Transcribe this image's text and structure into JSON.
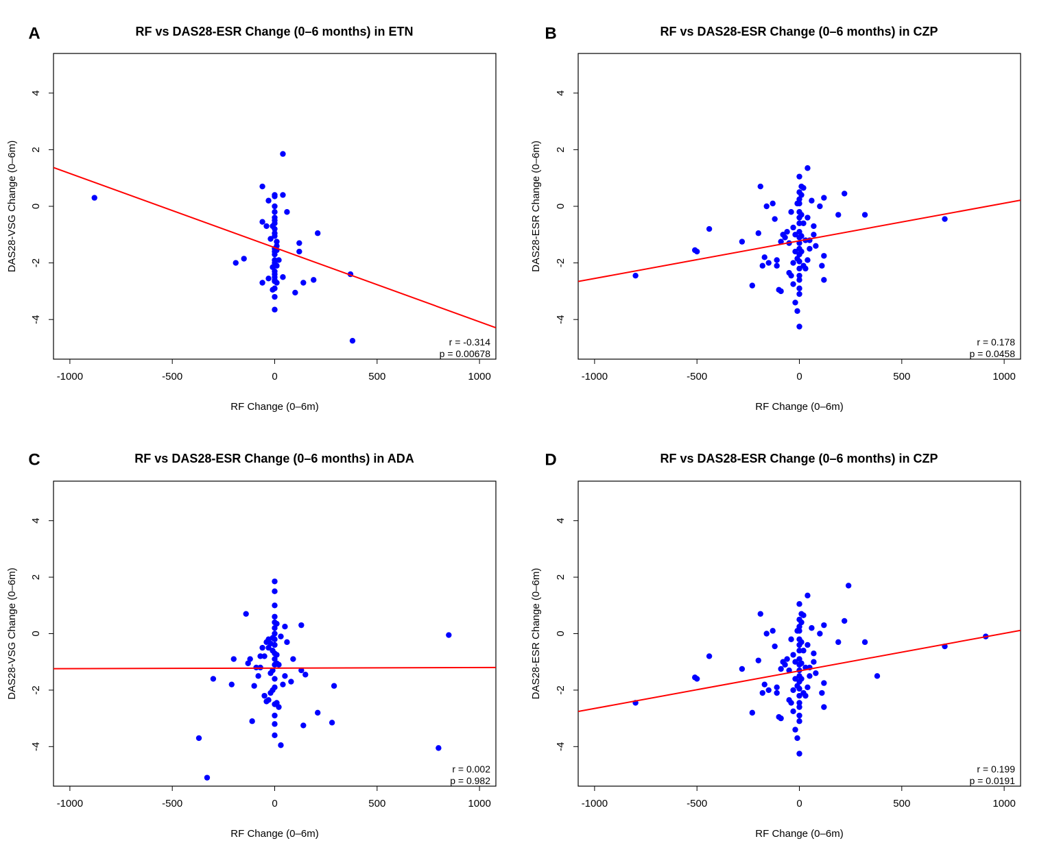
{
  "chart_data": [
    {
      "panel": "A",
      "type": "scatter",
      "title": "RF vs DAS28-ESR Change (0–6 months) in ETN",
      "xlabel": "RF Change (0–6m)",
      "ylabel": "DAS28-VSG Change (0–6m)",
      "xticks": [
        "-1000",
        "-500",
        "0",
        "500",
        "1000"
      ],
      "yticks": [
        "-4",
        "-2",
        "0",
        "2",
        "4"
      ],
      "xlim": [
        -1080,
        1080
      ],
      "ylim": [
        -5.4,
        5.4
      ],
      "fit_line": {
        "slope": -0.00262,
        "intercept": -1.46
      },
      "r_text": "r = -0.314",
      "p_text": "p = 0.00678",
      "point_color": "#0000ff",
      "line_color": "#ff0000",
      "x": [
        -880,
        40,
        -60,
        0,
        0,
        40,
        -30,
        60,
        0,
        0,
        0,
        0,
        0,
        -10,
        0,
        -60,
        -40,
        0,
        0,
        210,
        -20,
        10,
        10,
        120,
        0,
        0,
        0,
        120,
        10,
        0,
        20,
        0,
        -190,
        0,
        -150,
        -10,
        0,
        10,
        0,
        0,
        40,
        0,
        10,
        -30,
        0,
        -60,
        0,
        140,
        190,
        370,
        100,
        -10,
        0,
        0,
        380
      ],
      "y": [
        0.3,
        1.85,
        0.7,
        0.4,
        0.35,
        0.4,
        0.2,
        -0.2,
        0.0,
        -0.2,
        -0.4,
        -0.5,
        -0.6,
        -0.7,
        -0.8,
        -0.55,
        -0.7,
        -0.95,
        -1.05,
        -0.95,
        -1.15,
        -1.25,
        -1.4,
        -1.3,
        -1.5,
        -1.6,
        -1.7,
        -1.6,
        -1.55,
        -1.9,
        -1.9,
        -2.1,
        -2.0,
        -2.0,
        -1.85,
        -2.15,
        -2.3,
        -2.1,
        -2.4,
        -2.5,
        -2.5,
        -2.6,
        -2.7,
        -2.55,
        -2.65,
        -2.7,
        -2.9,
        -2.7,
        -2.6,
        -2.4,
        -3.05,
        -2.95,
        -3.2,
        -3.65,
        -4.75
      ]
    },
    {
      "panel": "B",
      "type": "scatter",
      "title": "RF vs DAS28-ESR Change (0–6 months) in CZP",
      "xlabel": "RF Change (0–6m)",
      "ylabel": "DAS28-ESR Change (0–6m)",
      "xticks": [
        "-1000",
        "-500",
        "0",
        "500",
        "1000"
      ],
      "yticks": [
        "-4",
        "-2",
        "0",
        "2",
        "4"
      ],
      "xlim": [
        -1080,
        1080
      ],
      "ylim": [
        -5.4,
        5.4
      ],
      "fit_line": {
        "slope": 0.00133,
        "intercept": -1.22
      },
      "r_text": "r = 0.178",
      "p_text": "p = 0.0458",
      "point_color": "#0000ff",
      "line_color": "#ff0000",
      "x": [
        -800,
        -510,
        -500,
        -440,
        -280,
        -230,
        -200,
        -190,
        -180,
        -170,
        -160,
        -150,
        -130,
        -120,
        -110,
        -110,
        -100,
        -90,
        -90,
        -80,
        -70,
        -60,
        -50,
        -50,
        -40,
        -40,
        -30,
        -30,
        -30,
        -20,
        -20,
        -20,
        -10,
        -10,
        -10,
        0,
        0,
        0,
        0,
        0,
        0,
        0,
        0,
        0,
        0,
        0,
        0,
        0,
        0,
        0,
        0,
        0,
        0,
        0,
        10,
        10,
        10,
        10,
        10,
        20,
        20,
        20,
        30,
        30,
        40,
        40,
        40,
        50,
        50,
        60,
        70,
        70,
        80,
        100,
        110,
        120,
        120,
        120,
        190,
        220,
        320,
        710
      ],
      "y": [
        -2.45,
        -1.55,
        -1.6,
        -0.8,
        -1.25,
        -2.8,
        -0.95,
        0.7,
        -2.1,
        -1.8,
        0.0,
        -2.0,
        0.1,
        -0.45,
        -1.9,
        -2.1,
        -2.95,
        -1.25,
        -3.0,
        -1.0,
        -1.1,
        -0.9,
        -2.35,
        -1.3,
        -0.2,
        -2.45,
        -0.75,
        -2.0,
        -2.75,
        -1.6,
        -1.0,
        -3.4,
        0.1,
        -1.85,
        -3.7,
        0.5,
        0.25,
        0.1,
        -0.2,
        -0.4,
        -0.6,
        -0.9,
        -1.1,
        -1.3,
        -1.5,
        -1.7,
        -1.95,
        -2.2,
        -2.45,
        -2.6,
        -2.9,
        -3.1,
        -4.25,
        1.05,
        0.7,
        0.4,
        -0.3,
        -1.05,
        -1.6,
        0.65,
        -0.6,
        -2.1,
        -1.2,
        -2.2,
        1.35,
        -0.4,
        -1.9,
        -1.5,
        -1.2,
        0.2,
        -0.7,
        -1.0,
        -1.4,
        0.0,
        -2.1,
        0.3,
        -1.75,
        -2.6,
        -0.3,
        0.45,
        -0.3,
        -0.45
      ]
    },
    {
      "panel": "C",
      "type": "scatter",
      "title": "RF vs DAS28-ESR Change (0–6 months) in ADA",
      "xlabel": "RF Change (0–6m)",
      "ylabel": "DAS28-VSG Change (0–6m)",
      "xticks": [
        "-1000",
        "-500",
        "0",
        "500",
        "1000"
      ],
      "yticks": [
        "-4",
        "-2",
        "0",
        "2",
        "4"
      ],
      "xlim": [
        -1080,
        1080
      ],
      "ylim": [
        -5.4,
        5.4
      ],
      "fit_line": {
        "slope": 2e-05,
        "intercept": -1.22
      },
      "r_text": "r = 0.002",
      "p_text": "p = 0.982",
      "point_color": "#0000ff",
      "line_color": "#ff0000",
      "x": [
        -370,
        -330,
        -300,
        -210,
        -200,
        -140,
        -130,
        -120,
        -110,
        -100,
        -90,
        -80,
        -70,
        -70,
        -60,
        -50,
        -50,
        -40,
        -40,
        -30,
        -30,
        -30,
        -20,
        -20,
        -20,
        -10,
        -10,
        -10,
        -10,
        0,
        0,
        0,
        0,
        0,
        0,
        0,
        0,
        0,
        0,
        0,
        0,
        0,
        0,
        0,
        0,
        0,
        0,
        10,
        10,
        10,
        10,
        20,
        20,
        30,
        30,
        40,
        50,
        50,
        60,
        80,
        90,
        130,
        130,
        140,
        150,
        210,
        280,
        290,
        800,
        850
      ],
      "y": [
        -3.7,
        -5.1,
        -1.6,
        -1.8,
        -0.9,
        0.7,
        -1.05,
        -0.9,
        -3.1,
        -1.85,
        -1.2,
        -1.5,
        -1.2,
        -0.8,
        -0.5,
        -2.2,
        -0.8,
        -2.4,
        -0.3,
        -2.35,
        -0.5,
        -0.2,
        -1.4,
        -0.35,
        -2.1,
        -0.15,
        -0.6,
        -1.3,
        -2.0,
        1.85,
        1.5,
        1.0,
        0.6,
        0.4,
        0.2,
        0.0,
        -0.2,
        -0.4,
        -0.7,
        -0.9,
        -1.1,
        -1.6,
        -1.9,
        -2.5,
        -2.9,
        -3.2,
        -3.6,
        0.35,
        -0.75,
        -1.05,
        -2.45,
        -1.1,
        -2.6,
        -0.1,
        -3.95,
        -1.8,
        0.25,
        -1.5,
        -0.3,
        -1.7,
        -0.9,
        0.3,
        -1.3,
        -3.25,
        -1.45,
        -2.8,
        -3.15,
        -1.85,
        -4.05,
        -0.05
      ]
    },
    {
      "panel": "D",
      "type": "scatter",
      "title": "RF vs DAS28-ESR Change (0–6 months) in CZP",
      "xlabel": "RF Change (0–6m)",
      "ylabel": "DAS28-ESR Change (0–6m)",
      "xticks": [
        "-1000",
        "-500",
        "0",
        "500",
        "1000"
      ],
      "yticks": [
        "-4",
        "-2",
        "0",
        "2",
        "4"
      ],
      "xlim": [
        -1080,
        1080
      ],
      "ylim": [
        -5.4,
        5.4
      ],
      "fit_line": {
        "slope": 0.00133,
        "intercept": -1.32
      },
      "r_text": "r = 0.199",
      "p_text": "p = 0.0191",
      "point_color": "#0000ff",
      "line_color": "#ff0000",
      "x": [
        -800,
        -510,
        -500,
        -440,
        -280,
        -230,
        -200,
        -190,
        -180,
        -170,
        -160,
        -150,
        -130,
        -120,
        -110,
        -110,
        -100,
        -90,
        -90,
        -80,
        -70,
        -60,
        -50,
        -50,
        -40,
        -40,
        -30,
        -30,
        -30,
        -20,
        -20,
        -20,
        -10,
        -10,
        -10,
        0,
        0,
        0,
        0,
        0,
        0,
        0,
        0,
        0,
        0,
        0,
        0,
        0,
        0,
        0,
        0,
        0,
        0,
        0,
        10,
        10,
        10,
        10,
        10,
        20,
        20,
        20,
        30,
        30,
        40,
        40,
        40,
        50,
        50,
        60,
        70,
        70,
        80,
        100,
        110,
        120,
        120,
        120,
        190,
        220,
        240,
        320,
        380,
        710,
        910
      ],
      "y": [
        -2.45,
        -1.55,
        -1.6,
        -0.8,
        -1.25,
        -2.8,
        -0.95,
        0.7,
        -2.1,
        -1.8,
        0.0,
        -2.0,
        0.1,
        -0.45,
        -1.9,
        -2.1,
        -2.95,
        -1.25,
        -3.0,
        -1.0,
        -1.1,
        -0.9,
        -2.35,
        -1.3,
        -0.2,
        -2.45,
        -0.75,
        -2.0,
        -2.75,
        -1.6,
        -1.0,
        -3.4,
        0.1,
        -1.85,
        -3.7,
        0.5,
        0.25,
        0.1,
        -0.2,
        -0.4,
        -0.6,
        -0.9,
        -1.1,
        -1.3,
        -1.5,
        -1.7,
        -1.95,
        -2.2,
        -2.45,
        -2.6,
        -2.9,
        -3.1,
        -4.25,
        1.05,
        0.7,
        0.4,
        -0.3,
        -1.05,
        -1.6,
        0.65,
        -0.6,
        -2.1,
        -1.2,
        -2.2,
        1.35,
        -0.4,
        -1.9,
        -1.5,
        -1.2,
        0.2,
        -0.7,
        -1.0,
        -1.4,
        0.0,
        -2.1,
        0.3,
        -1.75,
        -2.6,
        -0.3,
        0.45,
        1.7,
        -0.3,
        -1.5,
        -0.45,
        -0.1
      ]
    }
  ]
}
